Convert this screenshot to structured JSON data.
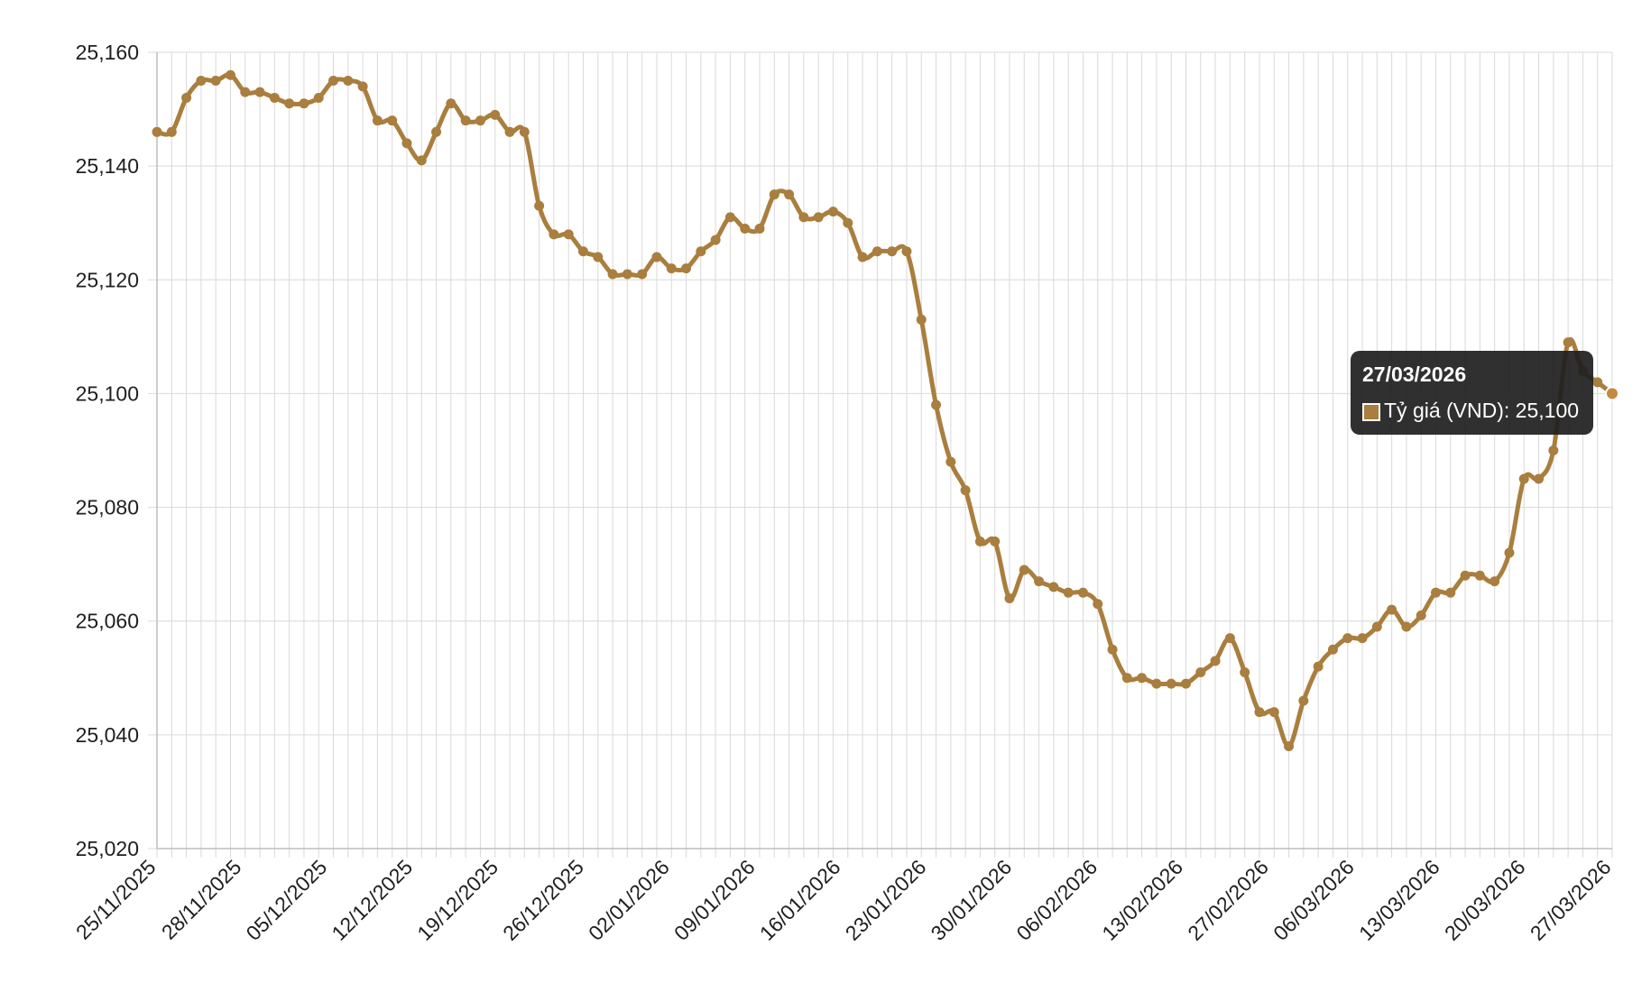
{
  "chart_data": {
    "type": "line",
    "title": "",
    "xlabel": "",
    "ylabel": "",
    "ylim": [
      25020,
      25160
    ],
    "y_ticks": [
      "25,020",
      "25,040",
      "25,060",
      "25,080",
      "25,100",
      "25,120",
      "25,140",
      "25,160"
    ],
    "x_tick_labels": [
      "25/11/2025",
      "28/11/2025",
      "05/12/2025",
      "12/12/2025",
      "19/12/2025",
      "26/12/2025",
      "02/01/2026",
      "09/01/2026",
      "16/01/2026",
      "23/01/2026",
      "30/01/2026",
      "06/02/2026",
      "13/02/2026",
      "27/02/2026",
      "06/03/2026",
      "13/03/2026",
      "20/03/2026",
      "27/03/2026"
    ],
    "grid": true,
    "colors": {
      "line": "#a97e3e",
      "grid": "#d9d9d9",
      "axis": "#bdbdbd"
    },
    "series": [
      {
        "name": "Tỷ giá (VND)",
        "values": [
          25146,
          25146,
          25152,
          25155,
          25155,
          25156,
          25153,
          25153,
          25152,
          25151,
          25151,
          25152,
          25155,
          25155,
          25154,
          25148,
          25148,
          25144,
          25141,
          25146,
          25151,
          25148,
          25148,
          25149,
          25146,
          25146,
          25133,
          25128,
          25128,
          25125,
          25124,
          25121,
          25121,
          25121,
          25124,
          25122,
          25122,
          25125,
          25127,
          25131,
          25129,
          25129,
          25135,
          25135,
          25131,
          25131,
          25132,
          25130,
          25124,
          25125,
          25125,
          25125,
          25113,
          25098,
          25088,
          25083,
          25074,
          25074,
          25064,
          25069,
          25067,
          25066,
          25065,
          25065,
          25063,
          25055,
          25050,
          25050,
          25049,
          25049,
          25049,
          25051,
          25053,
          25057,
          25051,
          25044,
          25044,
          25038,
          25046,
          25052,
          25055,
          25057,
          25057,
          25059,
          25062,
          25059,
          25061,
          25065,
          25065,
          25068,
          25068,
          25067,
          25072,
          25085,
          25085,
          25090,
          25109,
          25104,
          25102,
          25100
        ]
      }
    ],
    "tooltip": {
      "title": "27/03/2026",
      "label": "Tỷ giá (VND): 25,100"
    }
  }
}
